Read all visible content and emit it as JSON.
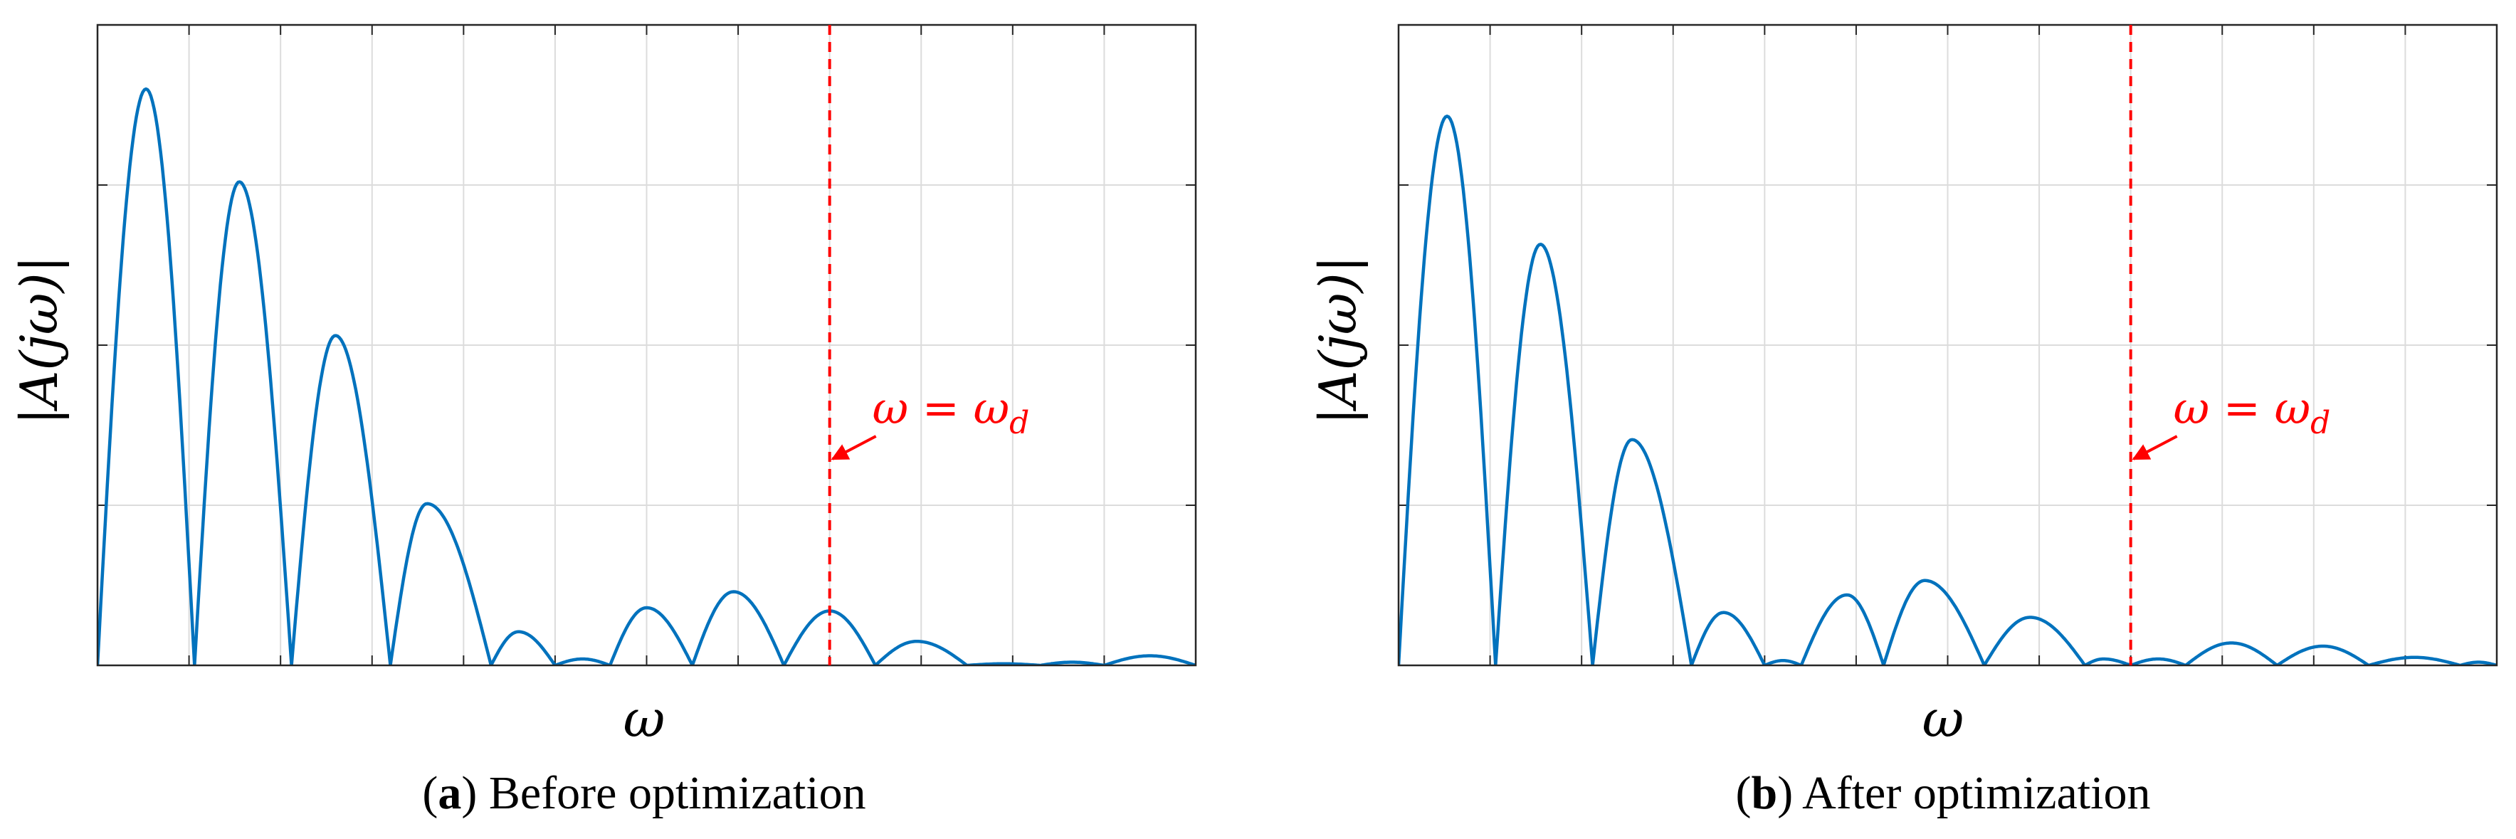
{
  "colors": {
    "curve": "#0072BD",
    "marker": "#FF0000",
    "grid": "#DCDCDC",
    "axes": "#262626"
  },
  "chart_data": [
    {
      "type": "line",
      "caption_letter": "a",
      "caption_text": "Before optimization",
      "xlabel": "ω",
      "ylabel": "|A(jω)|",
      "xlim": [
        0,
        12
      ],
      "ylim": [
        0,
        4
      ],
      "grid": true,
      "tick_labels_shown": false,
      "marker_line": {
        "x": 8,
        "style": "dashed",
        "label": "ω = ω",
        "label_subscript": "d"
      },
      "lobes": [
        {
          "start": 0.0,
          "end": 1.06,
          "peak_x": 0.53,
          "peak": 3.6
        },
        {
          "start": 1.06,
          "end": 2.12,
          "peak_x": 1.55,
          "peak": 3.02
        },
        {
          "start": 2.12,
          "end": 3.2,
          "peak_x": 2.6,
          "peak": 2.06
        },
        {
          "start": 3.2,
          "end": 4.3,
          "peak_x": 3.6,
          "peak": 1.01
        },
        {
          "start": 4.3,
          "end": 5.0,
          "peak_x": 4.6,
          "peak": 0.21
        },
        {
          "start": 5.0,
          "end": 5.6,
          "peak_x": 5.3,
          "peak": 0.04
        },
        {
          "start": 5.6,
          "end": 6.5,
          "peak_x": 6.0,
          "peak": 0.36
        },
        {
          "start": 6.5,
          "end": 7.5,
          "peak_x": 6.95,
          "peak": 0.46
        },
        {
          "start": 7.5,
          "end": 8.5,
          "peak_x": 8.0,
          "peak": 0.34
        },
        {
          "start": 8.5,
          "end": 9.5,
          "peak_x": 8.95,
          "peak": 0.15
        },
        {
          "start": 9.5,
          "end": 10.3,
          "peak_x": 9.9,
          "peak": 0.01
        },
        {
          "start": 10.3,
          "end": 11.0,
          "peak_x": 10.65,
          "peak": 0.02
        },
        {
          "start": 11.0,
          "end": 12.0,
          "peak_x": 11.5,
          "peak": 0.06
        },
        {
          "start": 12.0,
          "end": 12.6,
          "peak_x": 12.3,
          "peak": 0.04
        }
      ]
    },
    {
      "type": "line",
      "caption_letter": "b",
      "caption_text": "After optimization",
      "xlabel": "ω",
      "ylabel": "|A(jω)|",
      "xlim": [
        0,
        12
      ],
      "ylim": [
        0,
        4
      ],
      "grid": true,
      "tick_labels_shown": false,
      "marker_line": {
        "x": 8,
        "style": "dashed",
        "label": "ω = ω",
        "label_subscript": "d"
      },
      "lobes": [
        {
          "start": 0.0,
          "end": 1.06,
          "peak_x": 0.53,
          "peak": 3.43
        },
        {
          "start": 1.06,
          "end": 2.12,
          "peak_x": 1.55,
          "peak": 2.63
        },
        {
          "start": 2.12,
          "end": 3.2,
          "peak_x": 2.55,
          "peak": 1.41
        },
        {
          "start": 3.2,
          "end": 4.0,
          "peak_x": 3.55,
          "peak": 0.33
        },
        {
          "start": 4.0,
          "end": 4.4,
          "peak_x": 4.2,
          "peak": 0.03
        },
        {
          "start": 4.4,
          "end": 5.3,
          "peak_x": 4.9,
          "peak": 0.44
        },
        {
          "start": 5.3,
          "end": 6.4,
          "peak_x": 5.75,
          "peak": 0.53
        },
        {
          "start": 6.4,
          "end": 7.5,
          "peak_x": 6.9,
          "peak": 0.3
        },
        {
          "start": 7.5,
          "end": 8.0,
          "peak_x": 7.7,
          "peak": 0.04
        },
        {
          "start": 8.0,
          "end": 8.6,
          "peak_x": 8.3,
          "peak": 0.04
        },
        {
          "start": 8.6,
          "end": 9.6,
          "peak_x": 9.1,
          "peak": 0.14
        },
        {
          "start": 9.6,
          "end": 10.6,
          "peak_x": 10.1,
          "peak": 0.12
        },
        {
          "start": 10.6,
          "end": 11.6,
          "peak_x": 11.1,
          "peak": 0.05
        },
        {
          "start": 11.6,
          "end": 12.0,
          "peak_x": 11.8,
          "peak": 0.02
        }
      ]
    }
  ]
}
